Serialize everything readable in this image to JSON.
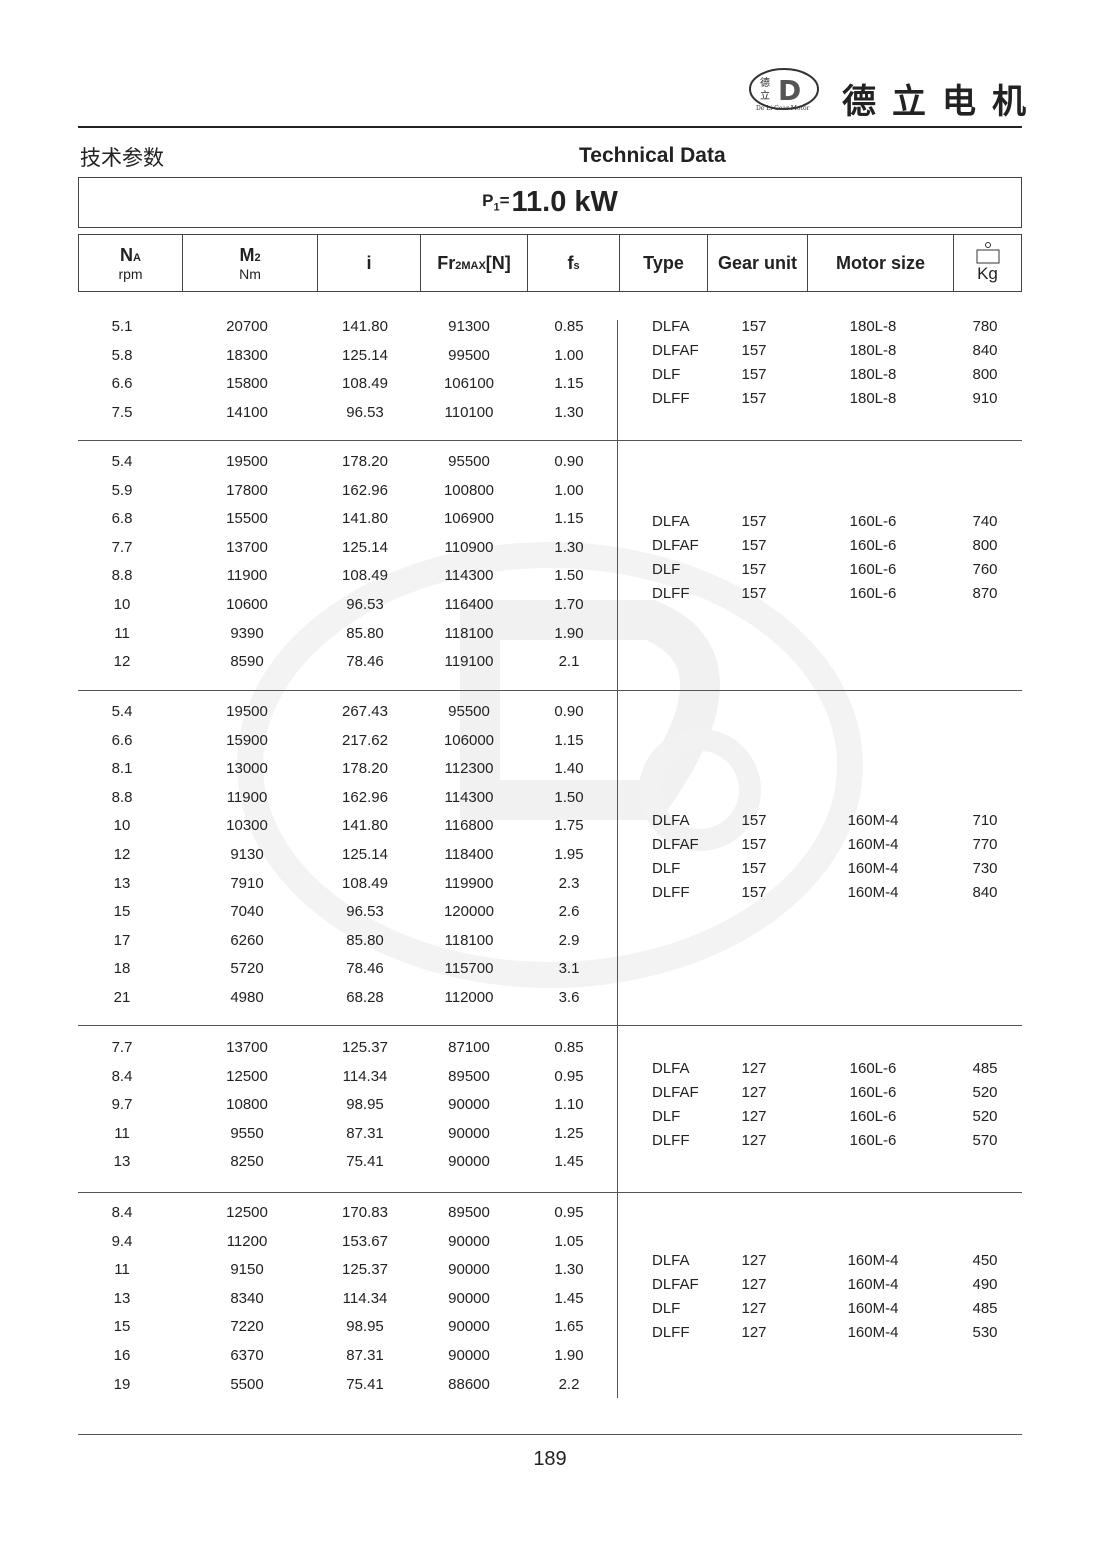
{
  "header": {
    "brand_cn": "德立电机",
    "logo_text": "De Li Gear Motor",
    "logo_chars": "德立"
  },
  "titles": {
    "cn": "技术参数",
    "en": "Technical Data"
  },
  "power": {
    "symbol": "P",
    "subscript": "1",
    "equals": "=",
    "value": "11.0 kW"
  },
  "columns": {
    "na": {
      "main": "N",
      "sub": "A",
      "unit": "rpm"
    },
    "m2": {
      "main": "M",
      "sub": "2",
      "unit": "Nm"
    },
    "i": "i",
    "fr": {
      "main": "Fr",
      "sub": "2MAX",
      "suffix": "[N]"
    },
    "fs": {
      "main": "f",
      "sub": "s"
    },
    "type": "Type",
    "gear_unit": "Gear unit",
    "motor_size": "Motor size",
    "weight_unit": "Kg"
  },
  "groups": [
    {
      "rows": [
        [
          "5.1",
          "20700",
          "141.80",
          "91300",
          "0.85"
        ],
        [
          "5.8",
          "18300",
          "125.14",
          "99500",
          "1.00"
        ],
        [
          "6.6",
          "15800",
          "108.49",
          "106100",
          "1.15"
        ],
        [
          "7.5",
          "14100",
          "96.53",
          "110100",
          "1.30"
        ]
      ],
      "models": [
        [
          "DLFA",
          "157",
          "180L-8",
          "780"
        ],
        [
          "DLFAF",
          "157",
          "180L-8",
          "840"
        ],
        [
          "DLF",
          "157",
          "180L-8",
          "800"
        ],
        [
          "DLFF",
          "157",
          "180L-8",
          "910"
        ]
      ]
    },
    {
      "rows": [
        [
          "5.4",
          "19500",
          "178.20",
          "95500",
          "0.90"
        ],
        [
          "5.9",
          "17800",
          "162.96",
          "100800",
          "1.00"
        ],
        [
          "6.8",
          "15500",
          "141.80",
          "106900",
          "1.15"
        ],
        [
          "7.7",
          "13700",
          "125.14",
          "110900",
          "1.30"
        ],
        [
          "8.8",
          "11900",
          "108.49",
          "114300",
          "1.50"
        ],
        [
          "10",
          "10600",
          "96.53",
          "116400",
          "1.70"
        ],
        [
          "11",
          "9390",
          "85.80",
          "118100",
          "1.90"
        ],
        [
          "12",
          "8590",
          "78.46",
          "119100",
          "2.1"
        ]
      ],
      "models": [
        [
          "DLFA",
          "157",
          "160L-6",
          "740"
        ],
        [
          "DLFAF",
          "157",
          "160L-6",
          "800"
        ],
        [
          "DLF",
          "157",
          "160L-6",
          "760"
        ],
        [
          "DLFF",
          "157",
          "160L-6",
          "870"
        ]
      ]
    },
    {
      "rows": [
        [
          "5.4",
          "19500",
          "267.43",
          "95500",
          "0.90"
        ],
        [
          "6.6",
          "15900",
          "217.62",
          "106000",
          "1.15"
        ],
        [
          "8.1",
          "13000",
          "178.20",
          "112300",
          "1.40"
        ],
        [
          "8.8",
          "11900",
          "162.96",
          "114300",
          "1.50"
        ],
        [
          "10",
          "10300",
          "141.80",
          "116800",
          "1.75"
        ],
        [
          "12",
          "9130",
          "125.14",
          "118400",
          "1.95"
        ],
        [
          "13",
          "7910",
          "108.49",
          "119900",
          "2.3"
        ],
        [
          "15",
          "7040",
          "96.53",
          "120000",
          "2.6"
        ],
        [
          "17",
          "6260",
          "85.80",
          "118100",
          "2.9"
        ],
        [
          "18",
          "5720",
          "78.46",
          "115700",
          "3.1"
        ],
        [
          "21",
          "4980",
          "68.28",
          "112000",
          "3.6"
        ]
      ],
      "models": [
        [
          "DLFA",
          "157",
          "160M-4",
          "710"
        ],
        [
          "DLFAF",
          "157",
          "160M-4",
          "770"
        ],
        [
          "DLF",
          "157",
          "160M-4",
          "730"
        ],
        [
          "DLFF",
          "157",
          "160M-4",
          "840"
        ]
      ]
    },
    {
      "rows": [
        [
          "7.7",
          "13700",
          "125.37",
          "87100",
          "0.85"
        ],
        [
          "8.4",
          "12500",
          "114.34",
          "89500",
          "0.95"
        ],
        [
          "9.7",
          "10800",
          "98.95",
          "90000",
          "1.10"
        ],
        [
          "11",
          "9550",
          "87.31",
          "90000",
          "1.25"
        ],
        [
          "13",
          "8250",
          "75.41",
          "90000",
          "1.45"
        ]
      ],
      "models": [
        [
          "DLFA",
          "127",
          "160L-6",
          "485"
        ],
        [
          "DLFAF",
          "127",
          "160L-6",
          "520"
        ],
        [
          "DLF",
          "127",
          "160L-6",
          "520"
        ],
        [
          "DLFF",
          "127",
          "160L-6",
          "570"
        ]
      ]
    },
    {
      "rows": [
        [
          "8.4",
          "12500",
          "170.83",
          "89500",
          "0.95"
        ],
        [
          "9.4",
          "11200",
          "153.67",
          "90000",
          "1.05"
        ],
        [
          "11",
          "9150",
          "125.37",
          "90000",
          "1.30"
        ],
        [
          "13",
          "8340",
          "114.34",
          "90000",
          "1.45"
        ],
        [
          "15",
          "7220",
          "98.95",
          "90000",
          "1.65"
        ],
        [
          "16",
          "6370",
          "87.31",
          "90000",
          "1.90"
        ],
        [
          "19",
          "5500",
          "75.41",
          "88600",
          "2.2"
        ]
      ],
      "models": [
        [
          "DLFA",
          "127",
          "160M-4",
          "450"
        ],
        [
          "DLFAF",
          "127",
          "160M-4",
          "490"
        ],
        [
          "DLF",
          "127",
          "160M-4",
          "485"
        ],
        [
          "DLFF",
          "127",
          "160M-4",
          "530"
        ]
      ]
    }
  ],
  "footer": {
    "page_number": "189"
  }
}
